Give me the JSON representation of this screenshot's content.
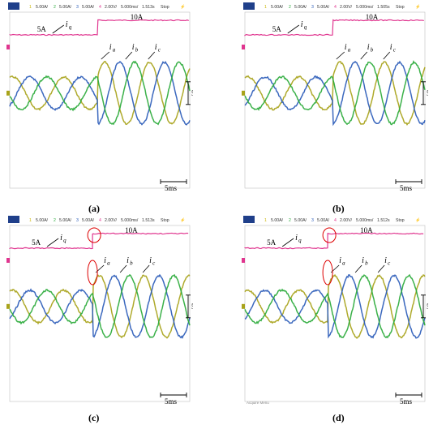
{
  "figure": {
    "panels": [
      {
        "caption": "(a)",
        "header": {
          "ch1": "5.00A/",
          "ch2n": "2",
          "ch2": "5.00A/",
          "ch3n": "3",
          "ch3": "5.00A/",
          "ch4n": "4",
          "ch4": "2.00V/",
          "time": "5.000ms/",
          "trig": "1.513s",
          "mode": "Stop"
        },
        "iq_before": "5A",
        "iq_after": "10A",
        "scale": "5A",
        "time_scale": "5ms",
        "step_x": 0.49,
        "marked": false,
        "bottom_note": ""
      },
      {
        "caption": "(b)",
        "header": {
          "ch1": "5.00A/",
          "ch2n": "2",
          "ch2": "5.00A/",
          "ch3n": "3",
          "ch3": "5.00A/",
          "ch4n": "4",
          "ch4": "2.00V/",
          "time": "5.000ms/",
          "trig": "1.505s",
          "mode": "Stop"
        },
        "iq_before": "5A",
        "iq_after": "10A",
        "scale": "5A",
        "time_scale": "5ms",
        "step_x": 0.49,
        "marked": false,
        "bottom_note": ""
      },
      {
        "caption": "(c)",
        "header": {
          "ch1": "5.00A/",
          "ch2n": "2",
          "ch2": "5.00A/",
          "ch3n": "3",
          "ch3": "5.00A/",
          "ch4n": "4",
          "ch4": "2.00V/",
          "time": "5.000ms/",
          "trig": "1.513s",
          "mode": "Stop"
        },
        "iq_before": "5A",
        "iq_after": "10A",
        "scale": "5A",
        "time_scale": "5ms",
        "step_x": 0.46,
        "marked": true,
        "bottom_note": ""
      },
      {
        "caption": "(d)",
        "header": {
          "ch1": "5.00A/",
          "ch2n": "2",
          "ch2": "5.00A/",
          "ch3n": "3",
          "ch3": "5.00A/",
          "ch4n": "4",
          "ch4": "2.00V/",
          "time": "5.000ms/",
          "trig": "1.512s",
          "mode": "Stop"
        },
        "iq_before": "5A",
        "iq_after": "10A",
        "scale": "5A",
        "time_scale": "5ms",
        "step_x": 0.46,
        "marked": true,
        "bottom_note": "Acquire Menu"
      }
    ],
    "labels": {
      "iq": "q",
      "ia": "a",
      "ib": "b",
      "ic": "c",
      "i": "i"
    }
  },
  "chart_data": [
    {
      "type": "line",
      "title": "",
      "series": [
        {
          "name": "iq",
          "amplitude_before": 5,
          "amplitude_after": 10,
          "unit": "A"
        },
        {
          "name": "ia",
          "phase_deg": 0
        },
        {
          "name": "ib",
          "phase_deg": -120
        },
        {
          "name": "ic",
          "phase_deg": 120
        }
      ],
      "time_per_div": "5ms",
      "colors": {
        "iq": "#e0358f",
        "ia": "#a8a31a",
        "ib": "#2a5bb8",
        "ic": "#2aaa3a"
      }
    }
  ]
}
